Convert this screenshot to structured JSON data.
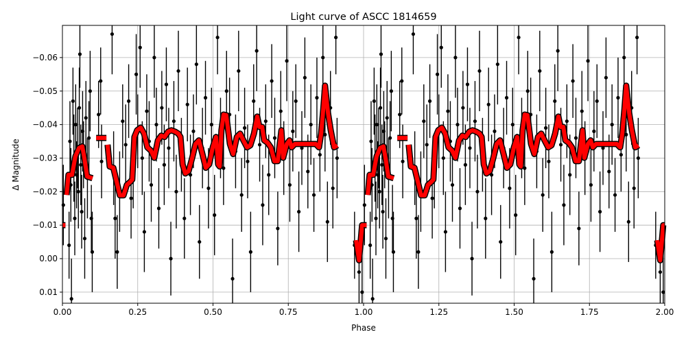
{
  "chart_data": {
    "type": "scatter",
    "title": "Light curve of ASCC 1814659",
    "xlabel": "Phase",
    "ylabel": "Δ Magnitude",
    "xlim": [
      0,
      2
    ],
    "ylim": [
      0.0133,
      -0.0696
    ],
    "y_inverted": true,
    "grid": true,
    "x_ticks": [
      "0.00",
      "0.25",
      "0.50",
      "0.75",
      "1.00",
      "1.25",
      "1.50",
      "1.75",
      "2.00"
    ],
    "x_tick_values": [
      0,
      0.25,
      0.5,
      0.75,
      1,
      1.25,
      1.5,
      1.75,
      2
    ],
    "y_ticks": [
      "−0.06",
      "−0.05",
      "−0.04",
      "−0.03",
      "−0.02",
      "−0.01",
      "0.00",
      "0.01"
    ],
    "y_tick_values": [
      -0.06,
      -0.05,
      -0.04,
      -0.03,
      -0.02,
      -0.01,
      0.0,
      0.01
    ],
    "phase_cycles_shown": 2,
    "colors": {
      "points": "#000000",
      "binned": "#ff0000",
      "binned_edge": "#000000"
    },
    "observations": [
      [
        0.003,
        -0.016,
        0.012
      ],
      [
        0.022,
        -0.004,
        0.01
      ],
      [
        0.025,
        -0.035,
        0.012
      ],
      [
        0.028,
        -0.022,
        0.011
      ],
      [
        0.03,
        0.012,
        0.012
      ],
      [
        0.035,
        -0.047,
        0.01
      ],
      [
        0.038,
        -0.03,
        0.013
      ],
      [
        0.041,
        -0.012,
        0.011
      ],
      [
        0.044,
        -0.04,
        0.012
      ],
      [
        0.047,
        -0.025,
        0.01
      ],
      [
        0.05,
        -0.033,
        0.012
      ],
      [
        0.053,
        -0.02,
        0.011
      ],
      [
        0.056,
        -0.045,
        0.012
      ],
      [
        0.058,
        -0.061,
        0.01
      ],
      [
        0.061,
        -0.028,
        0.012
      ],
      [
        0.064,
        -0.014,
        0.011
      ],
      [
        0.067,
        -0.038,
        0.012
      ],
      [
        0.07,
        -0.031,
        0.01
      ],
      [
        0.074,
        -0.006,
        0.012
      ],
      [
        0.078,
        -0.042,
        0.011
      ],
      [
        0.083,
        -0.024,
        0.012
      ],
      [
        0.088,
        -0.036,
        0.011
      ],
      [
        0.092,
        -0.05,
        0.012
      ],
      [
        0.096,
        -0.012,
        0.01
      ],
      [
        0.099,
        -0.002,
        0.012
      ],
      [
        0.12,
        -0.043,
        0.01
      ],
      [
        0.127,
        -0.053,
        0.01
      ],
      [
        0.13,
        -0.029,
        0.011
      ],
      [
        0.165,
        -0.067,
        0.012
      ],
      [
        0.17,
        -0.027,
        0.011
      ],
      [
        0.175,
        -0.012,
        0.012
      ],
      [
        0.182,
        -0.002,
        0.011
      ],
      [
        0.19,
        -0.02,
        0.012
      ],
      [
        0.2,
        -0.041,
        0.011
      ],
      [
        0.21,
        -0.034,
        0.012
      ],
      [
        0.22,
        -0.047,
        0.011
      ],
      [
        0.228,
        -0.018,
        0.012
      ],
      [
        0.235,
        -0.026,
        0.011
      ],
      [
        0.245,
        -0.055,
        0.012
      ],
      [
        0.25,
        -0.038,
        0.011
      ],
      [
        0.258,
        -0.063,
        0.012
      ],
      [
        0.265,
        -0.03,
        0.011
      ],
      [
        0.272,
        -0.008,
        0.012
      ],
      [
        0.28,
        -0.044,
        0.011
      ],
      [
        0.288,
        -0.035,
        0.012
      ],
      [
        0.295,
        -0.022,
        0.011
      ],
      [
        0.305,
        -0.06,
        0.012
      ],
      [
        0.312,
        -0.04,
        0.011
      ],
      [
        0.32,
        -0.015,
        0.012
      ],
      [
        0.33,
        -0.045,
        0.011
      ],
      [
        0.338,
        -0.028,
        0.012
      ],
      [
        0.345,
        -0.052,
        0.011
      ],
      [
        0.353,
        -0.033,
        0.012
      ],
      [
        0.36,
        0.0,
        0.011
      ],
      [
        0.37,
        -0.041,
        0.012
      ],
      [
        0.378,
        -0.02,
        0.011
      ],
      [
        0.385,
        -0.056,
        0.012
      ],
      [
        0.395,
        -0.031,
        0.011
      ],
      [
        0.405,
        -0.012,
        0.012
      ],
      [
        0.415,
        -0.046,
        0.011
      ],
      [
        0.425,
        -0.025,
        0.012
      ],
      [
        0.435,
        -0.038,
        0.011
      ],
      [
        0.445,
        -0.058,
        0.012
      ],
      [
        0.455,
        -0.005,
        0.011
      ],
      [
        0.465,
        -0.033,
        0.012
      ],
      [
        0.475,
        -0.048,
        0.011
      ],
      [
        0.485,
        -0.021,
        0.012
      ],
      [
        0.495,
        -0.04,
        0.011
      ],
      [
        0.505,
        -0.013,
        0.012
      ],
      [
        0.515,
        -0.066,
        0.011
      ],
      [
        0.525,
        -0.036,
        0.012
      ],
      [
        0.535,
        -0.027,
        0.011
      ],
      [
        0.545,
        -0.05,
        0.012
      ],
      [
        0.555,
        -0.043,
        0.011
      ],
      [
        0.565,
        0.006,
        0.012
      ],
      [
        0.575,
        -0.032,
        0.011
      ],
      [
        0.585,
        -0.056,
        0.012
      ],
      [
        0.595,
        -0.019,
        0.011
      ],
      [
        0.605,
        -0.039,
        0.012
      ],
      [
        0.615,
        -0.029,
        0.011
      ],
      [
        0.625,
        -0.002,
        0.012
      ],
      [
        0.635,
        -0.047,
        0.011
      ],
      [
        0.645,
        -0.062,
        0.012
      ],
      [
        0.655,
        -0.034,
        0.011
      ],
      [
        0.665,
        -0.016,
        0.012
      ],
      [
        0.675,
        -0.041,
        0.011
      ],
      [
        0.685,
        -0.025,
        0.012
      ],
      [
        0.695,
        -0.053,
        0.011
      ],
      [
        0.705,
        -0.036,
        0.012
      ],
      [
        0.715,
        -0.009,
        0.011
      ],
      [
        0.725,
        -0.044,
        0.012
      ],
      [
        0.735,
        -0.03,
        0.011
      ],
      [
        0.745,
        -0.059,
        0.012
      ],
      [
        0.755,
        -0.022,
        0.011
      ],
      [
        0.765,
        -0.038,
        0.012
      ],
      [
        0.775,
        -0.047,
        0.011
      ],
      [
        0.785,
        -0.014,
        0.012
      ],
      [
        0.795,
        -0.033,
        0.011
      ],
      [
        0.805,
        -0.054,
        0.012
      ],
      [
        0.815,
        -0.026,
        0.011
      ],
      [
        0.825,
        -0.04,
        0.012
      ],
      [
        0.835,
        -0.019,
        0.011
      ],
      [
        0.845,
        -0.048,
        0.012
      ],
      [
        0.855,
        -0.031,
        0.011
      ],
      [
        0.865,
        -0.06,
        0.012
      ],
      [
        0.872,
        -0.037,
        0.011
      ],
      [
        0.88,
        -0.011,
        0.012
      ],
      [
        0.89,
        -0.045,
        0.011
      ],
      [
        0.898,
        -0.021,
        0.012
      ],
      [
        0.908,
        -0.066,
        0.011
      ],
      [
        0.912,
        -0.03,
        0.012
      ],
      [
        0.97,
        -0.004,
        0.01
      ],
      [
        0.985,
        0.004,
        0.011
      ],
      [
        0.995,
        0.01,
        0.012
      ]
    ],
    "binned_curve_segments": [
      [
        [
          0.975,
          -0.0055
        ],
        [
          0.985,
          0.0005
        ],
        [
          0.995,
          -0.01
        ],
        [
          1.0,
          -0.01
        ]
      ],
      [
        [
          0.0,
          -0.01
        ],
        [
          0.01,
          -0.01
        ]
      ],
      [
        [
          0.014,
          -0.019
        ],
        [
          0.02,
          -0.025
        ],
        [
          0.032,
          -0.025
        ],
        [
          0.043,
          -0.0305
        ],
        [
          0.055,
          -0.033
        ],
        [
          0.066,
          -0.0335
        ],
        [
          0.073,
          -0.03
        ],
        [
          0.082,
          -0.0245
        ],
        [
          0.1,
          -0.024
        ]
      ],
      [
        [
          0.112,
          -0.036
        ],
        [
          0.146,
          -0.036
        ]
      ],
      [
        [
          0.15,
          -0.034
        ],
        [
          0.157,
          -0.0275
        ],
        [
          0.169,
          -0.0271
        ],
        [
          0.18,
          -0.023
        ],
        [
          0.191,
          -0.0189
        ],
        [
          0.203,
          -0.0189
        ],
        [
          0.214,
          -0.022
        ],
        [
          0.226,
          -0.023
        ],
        [
          0.232,
          -0.0236
        ],
        [
          0.239,
          -0.0363
        ],
        [
          0.248,
          -0.0383
        ],
        [
          0.26,
          -0.0391
        ],
        [
          0.271,
          -0.0373
        ],
        [
          0.282,
          -0.0332
        ],
        [
          0.294,
          -0.0322
        ],
        [
          0.305,
          -0.0301
        ],
        [
          0.317,
          -0.0353
        ],
        [
          0.328,
          -0.0367
        ],
        [
          0.339,
          -0.0363
        ],
        [
          0.351,
          -0.0379
        ],
        [
          0.362,
          -0.0383
        ],
        [
          0.374,
          -0.0379
        ],
        [
          0.385,
          -0.0373
        ],
        [
          0.392,
          -0.0363
        ],
        [
          0.399,
          -0.0281
        ],
        [
          0.408,
          -0.0254
        ],
        [
          0.419,
          -0.0261
        ],
        [
          0.431,
          -0.0301
        ],
        [
          0.442,
          -0.0342
        ],
        [
          0.453,
          -0.0353
        ],
        [
          0.465,
          -0.0312
        ],
        [
          0.476,
          -0.0271
        ],
        [
          0.487,
          -0.0281
        ],
        [
          0.499,
          -0.0332
        ],
        [
          0.51,
          -0.0363
        ],
        [
          0.517,
          -0.0281
        ],
        [
          0.522,
          -0.0275
        ],
        [
          0.528,
          -0.0383
        ],
        [
          0.535,
          -0.043
        ],
        [
          0.544,
          -0.0428
        ],
        [
          0.556,
          -0.0342
        ],
        [
          0.567,
          -0.0312
        ],
        [
          0.579,
          -0.0363
        ],
        [
          0.59,
          -0.0373
        ],
        [
          0.601,
          -0.0353
        ],
        [
          0.613,
          -0.0332
        ],
        [
          0.624,
          -0.0338
        ],
        [
          0.636,
          -0.0373
        ],
        [
          0.647,
          -0.0424
        ],
        [
          0.654,
          -0.0393
        ],
        [
          0.663,
          -0.0393
        ],
        [
          0.67,
          -0.0353
        ],
        [
          0.681,
          -0.0346
        ],
        [
          0.692,
          -0.0332
        ],
        [
          0.704,
          -0.0291
        ],
        [
          0.715,
          -0.0291
        ],
        [
          0.727,
          -0.0383
        ],
        [
          0.733,
          -0.0301
        ],
        [
          0.745,
          -0.0342
        ],
        [
          0.754,
          -0.0353
        ],
        [
          0.761,
          -0.0332
        ],
        [
          0.772,
          -0.0342
        ],
        [
          0.795,
          -0.0342
        ],
        [
          0.841,
          -0.0342
        ],
        [
          0.852,
          -0.0332
        ],
        [
          0.859,
          -0.0373
        ],
        [
          0.866,
          -0.0445
        ],
        [
          0.872,
          -0.0516
        ],
        [
          0.882,
          -0.0434
        ],
        [
          0.891,
          -0.0383
        ],
        [
          0.902,
          -0.0332
        ],
        [
          0.913,
          -0.0338
        ]
      ]
    ]
  }
}
